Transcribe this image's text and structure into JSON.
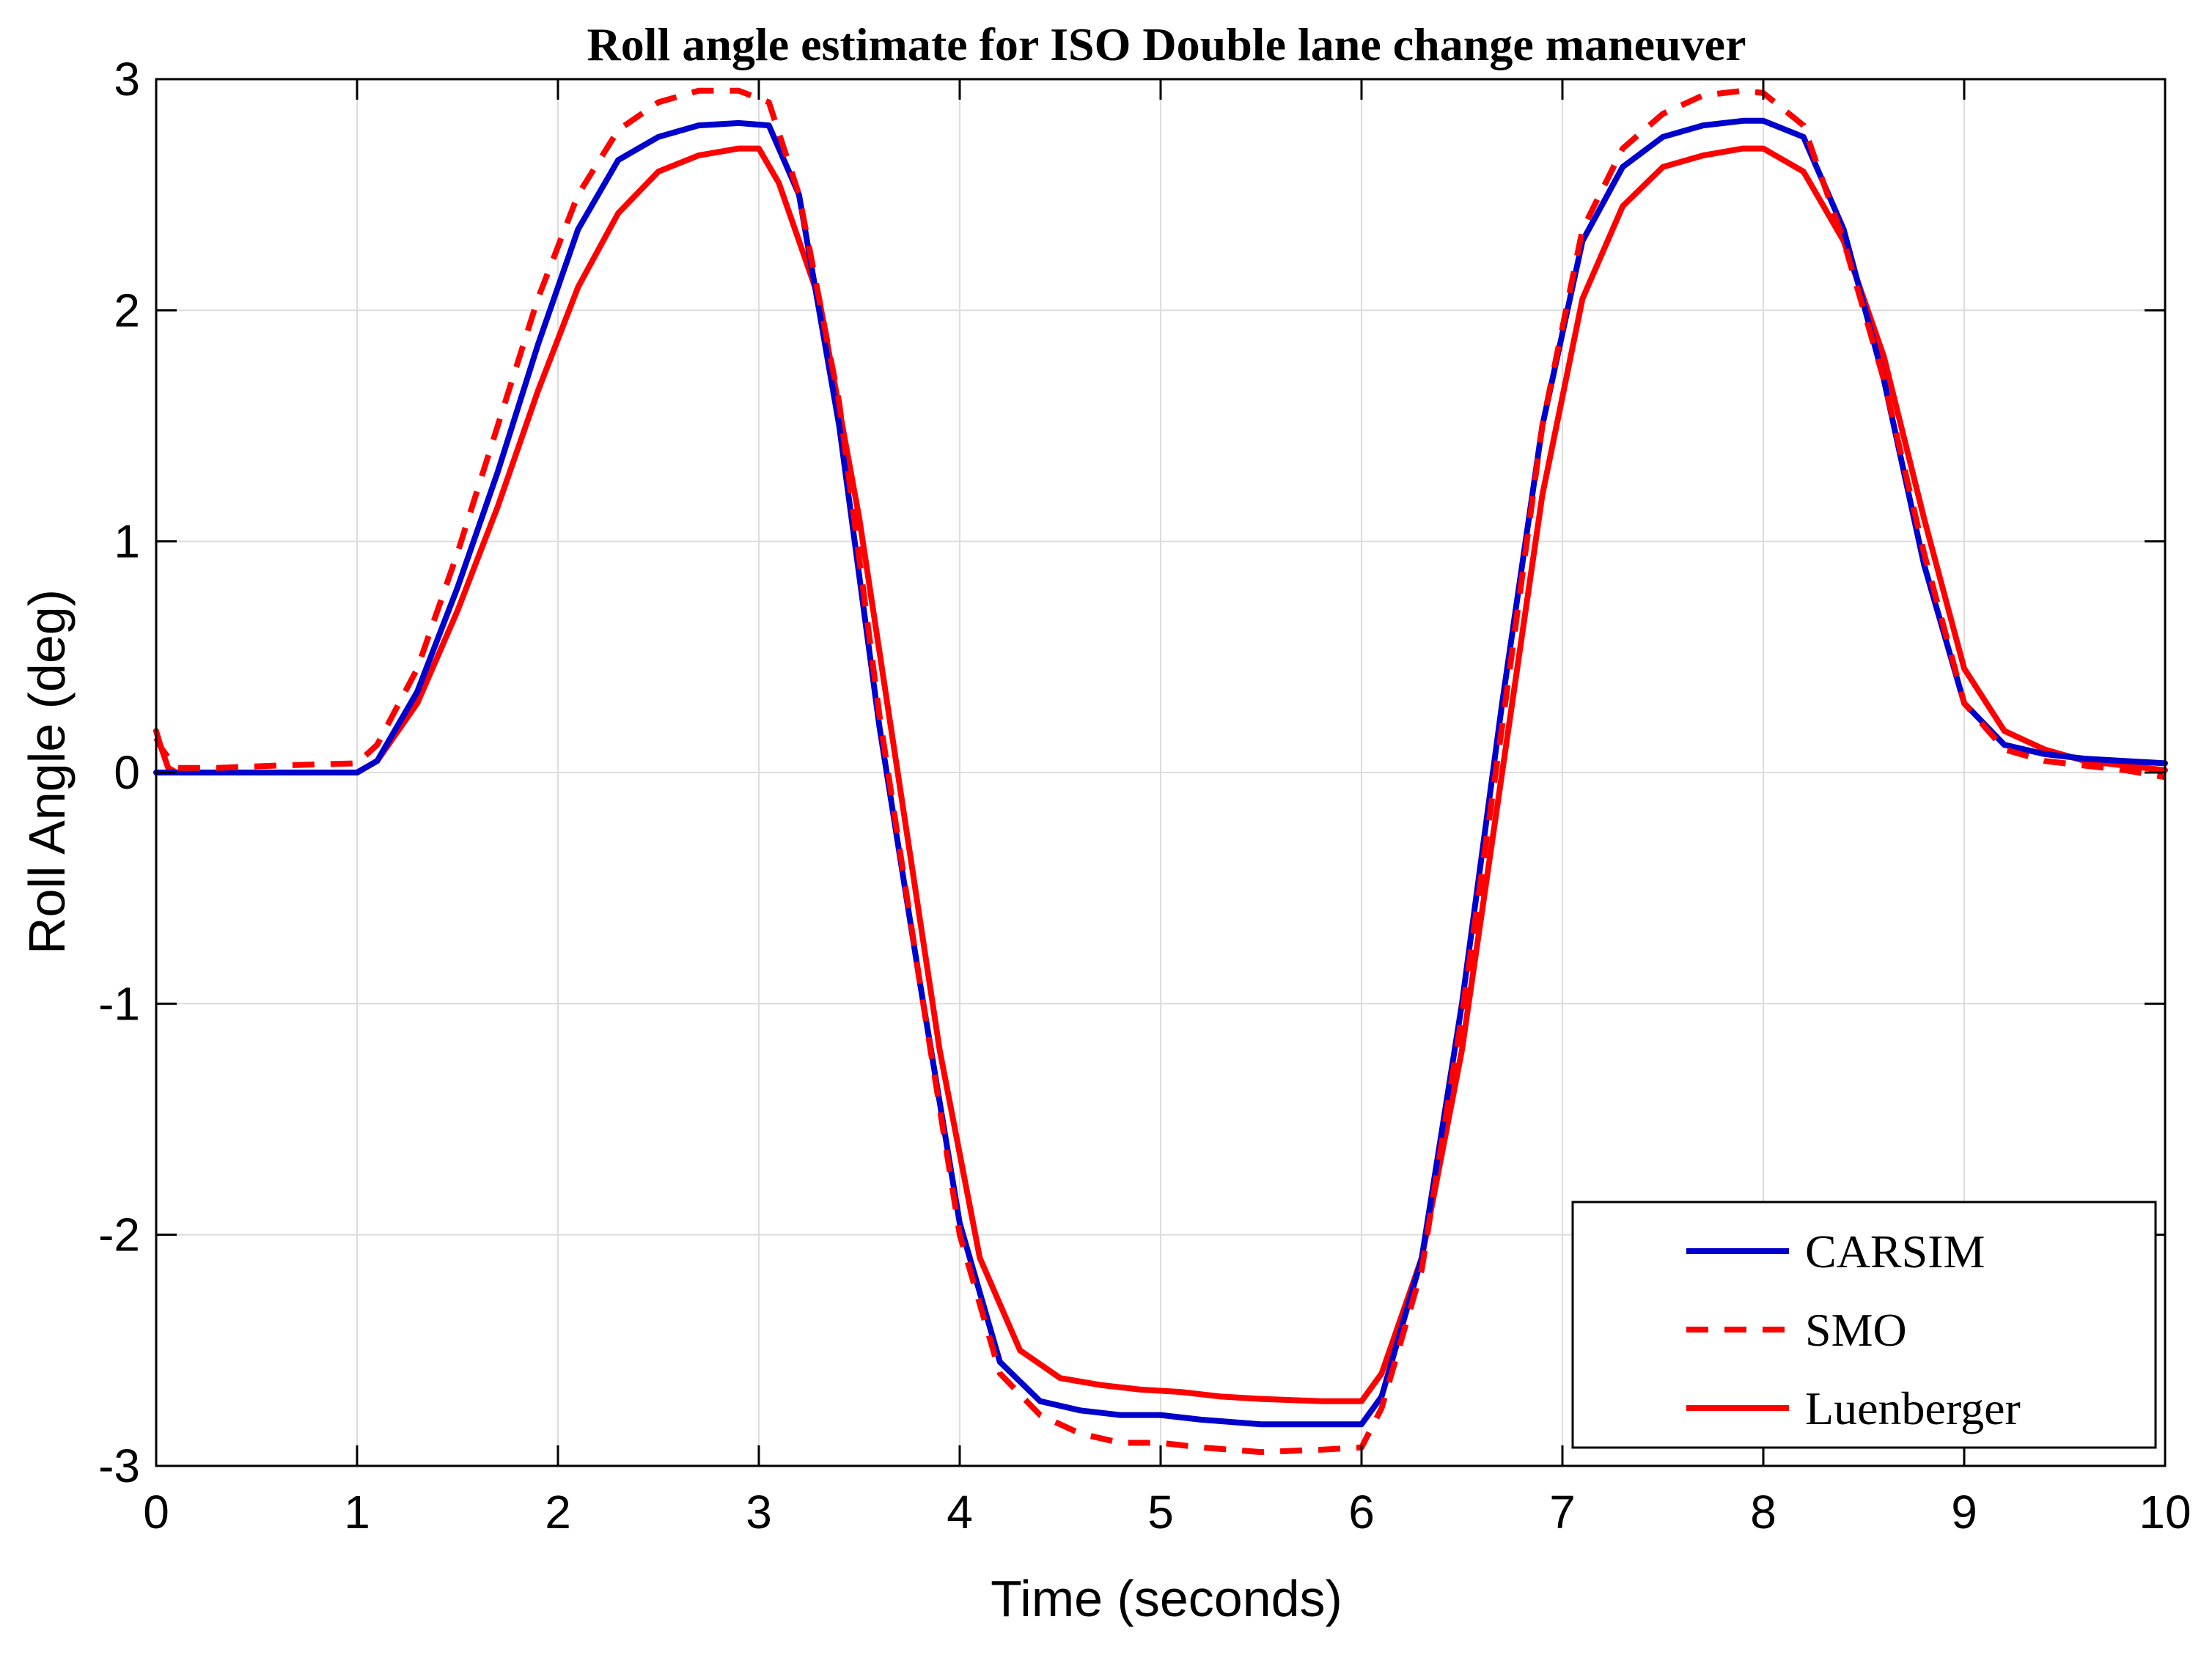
{
  "chart_data": {
    "type": "line",
    "title": "Roll angle estimate for ISO Double lane change maneuver",
    "xlabel": "Time (seconds)",
    "ylabel": "Roll Angle (deg)",
    "xlim": [
      0,
      10
    ],
    "ylim": [
      -3,
      3
    ],
    "xticks": [
      0,
      1,
      2,
      3,
      4,
      5,
      6,
      7,
      8,
      9,
      10
    ],
    "yticks": [
      -3,
      -2,
      -1,
      0,
      1,
      2,
      3
    ],
    "xtick_labels": [
      "0",
      "1",
      "2",
      "3",
      "4",
      "5",
      "6",
      "7",
      "8",
      "9",
      "10"
    ],
    "ytick_labels": [
      "-3",
      "-2",
      "-1",
      "0",
      "1",
      "2",
      "3"
    ],
    "grid": true,
    "legend_position": "bottom-right",
    "series": [
      {
        "name": "CARSIM",
        "color": "#0000cc",
        "style": "solid",
        "x": [
          0,
          1.0,
          1.1,
          1.3,
          1.5,
          1.7,
          1.9,
          2.1,
          2.3,
          2.5,
          2.7,
          2.9,
          3.05,
          3.2,
          3.4,
          3.6,
          3.8,
          4.0,
          4.2,
          4.4,
          4.6,
          4.8,
          5.0,
          5.2,
          5.5,
          5.8,
          6.0,
          6.1,
          6.3,
          6.5,
          6.7,
          6.9,
          7.1,
          7.3,
          7.5,
          7.7,
          7.9,
          8.0,
          8.2,
          8.4,
          8.6,
          8.8,
          9.0,
          9.2,
          9.4,
          9.6,
          10.0
        ],
        "y": [
          0,
          0,
          0.05,
          0.35,
          0.8,
          1.3,
          1.85,
          2.35,
          2.65,
          2.75,
          2.8,
          2.81,
          2.8,
          2.5,
          1.5,
          0.2,
          -0.9,
          -1.95,
          -2.55,
          -2.72,
          -2.76,
          -2.78,
          -2.78,
          -2.8,
          -2.82,
          -2.82,
          -2.82,
          -2.7,
          -2.1,
          -1.0,
          0.3,
          1.5,
          2.3,
          2.62,
          2.75,
          2.8,
          2.82,
          2.82,
          2.75,
          2.35,
          1.7,
          0.9,
          0.3,
          0.12,
          0.08,
          0.06,
          0.04
        ]
      },
      {
        "name": "SMO",
        "color": "#ff0000",
        "style": "dashed",
        "x": [
          0,
          0.03,
          0.1,
          0.3,
          0.6,
          1.0,
          1.1,
          1.3,
          1.5,
          1.7,
          1.9,
          2.1,
          2.3,
          2.5,
          2.7,
          2.9,
          3.05,
          3.2,
          3.4,
          3.6,
          3.8,
          4.0,
          4.2,
          4.4,
          4.6,
          4.8,
          5.0,
          5.2,
          5.5,
          5.8,
          6.0,
          6.1,
          6.3,
          6.5,
          6.7,
          6.9,
          7.1,
          7.3,
          7.5,
          7.7,
          7.9,
          8.0,
          8.2,
          8.4,
          8.6,
          8.8,
          9.0,
          9.2,
          9.4,
          9.6,
          9.8,
          10.0
        ],
        "y": [
          0.15,
          0.1,
          0.02,
          0.02,
          0.03,
          0.04,
          0.12,
          0.45,
          0.95,
          1.5,
          2.05,
          2.5,
          2.78,
          2.9,
          2.95,
          2.95,
          2.9,
          2.5,
          1.6,
          0.25,
          -0.9,
          -2.0,
          -2.6,
          -2.78,
          -2.86,
          -2.9,
          -2.9,
          -2.92,
          -2.94,
          -2.93,
          -2.92,
          -2.75,
          -2.15,
          -1.05,
          0.2,
          1.5,
          2.35,
          2.7,
          2.85,
          2.93,
          2.95,
          2.94,
          2.8,
          2.3,
          1.7,
          0.95,
          0.3,
          0.1,
          0.05,
          0.03,
          0.01,
          -0.02
        ]
      },
      {
        "name": "Luenberger",
        "color": "#ff0000",
        "style": "solid",
        "x": [
          0,
          0.02,
          0.06,
          0.1,
          0.2,
          0.5,
          1.0,
          1.1,
          1.3,
          1.5,
          1.7,
          1.9,
          2.1,
          2.3,
          2.5,
          2.7,
          2.9,
          3.0,
          3.1,
          3.3,
          3.5,
          3.7,
          3.9,
          4.1,
          4.3,
          4.5,
          4.7,
          4.9,
          5.1,
          5.3,
          5.5,
          5.8,
          6.0,
          6.1,
          6.3,
          6.5,
          6.7,
          6.9,
          7.1,
          7.3,
          7.5,
          7.7,
          7.9,
          8.0,
          8.2,
          8.4,
          8.6,
          8.8,
          9.0,
          9.2,
          9.4,
          9.6,
          9.8,
          10.0
        ],
        "y": [
          0.18,
          0.12,
          0.02,
          0,
          0,
          0,
          0,
          0.05,
          0.3,
          0.7,
          1.15,
          1.65,
          2.1,
          2.42,
          2.6,
          2.67,
          2.7,
          2.7,
          2.55,
          2.05,
          1.1,
          -0.05,
          -1.2,
          -2.1,
          -2.5,
          -2.62,
          -2.65,
          -2.67,
          -2.68,
          -2.7,
          -2.71,
          -2.72,
          -2.72,
          -2.6,
          -2.1,
          -1.2,
          0.0,
          1.2,
          2.05,
          2.45,
          2.62,
          2.67,
          2.7,
          2.7,
          2.6,
          2.3,
          1.8,
          1.1,
          0.45,
          0.18,
          0.1,
          0.05,
          0.03,
          0.01
        ]
      }
    ]
  }
}
